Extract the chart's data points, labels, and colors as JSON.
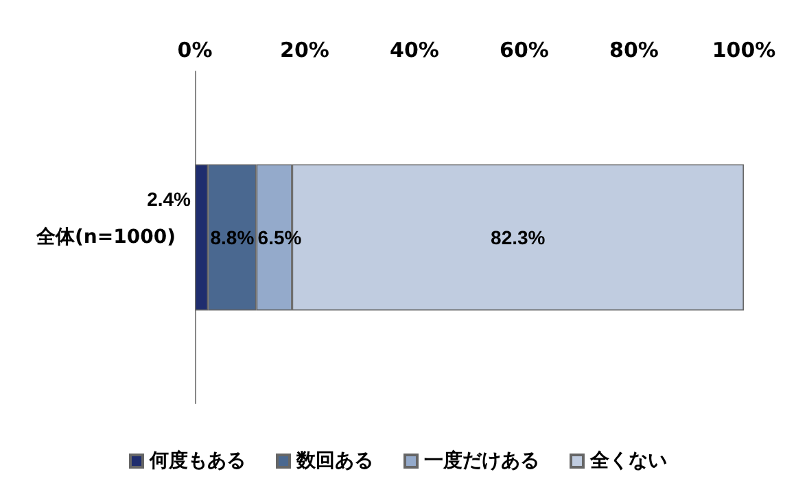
{
  "chart_data": {
    "type": "bar",
    "orientation": "horizontal",
    "stacked": true,
    "categories": [
      "全体(n=1000)"
    ],
    "series": [
      {
        "name": "何度もある",
        "color": "#1f2d6e",
        "values": [
          2.4
        ],
        "value_labels": [
          "2.4%"
        ]
      },
      {
        "name": "数回ある",
        "color": "#4a6890",
        "values": [
          8.8
        ],
        "value_labels": [
          "8.8%"
        ]
      },
      {
        "name": "一度だけある",
        "color": "#94aacb",
        "values": [
          6.5
        ],
        "value_labels": [
          "6.5%"
        ]
      },
      {
        "name": "全くない",
        "color": "#c0cce0",
        "values": [
          82.3
        ],
        "value_labels": [
          "82.3%"
        ]
      }
    ],
    "xlim": [
      0,
      100
    ],
    "xticks": [
      {
        "value": 0,
        "label": "0%"
      },
      {
        "value": 20,
        "label": "20%"
      },
      {
        "value": 40,
        "label": "40%"
      },
      {
        "value": 60,
        "label": "60%"
      },
      {
        "value": 80,
        "label": "80%"
      },
      {
        "value": 100,
        "label": "100%"
      }
    ],
    "grid": false,
    "legend": "bottom"
  }
}
